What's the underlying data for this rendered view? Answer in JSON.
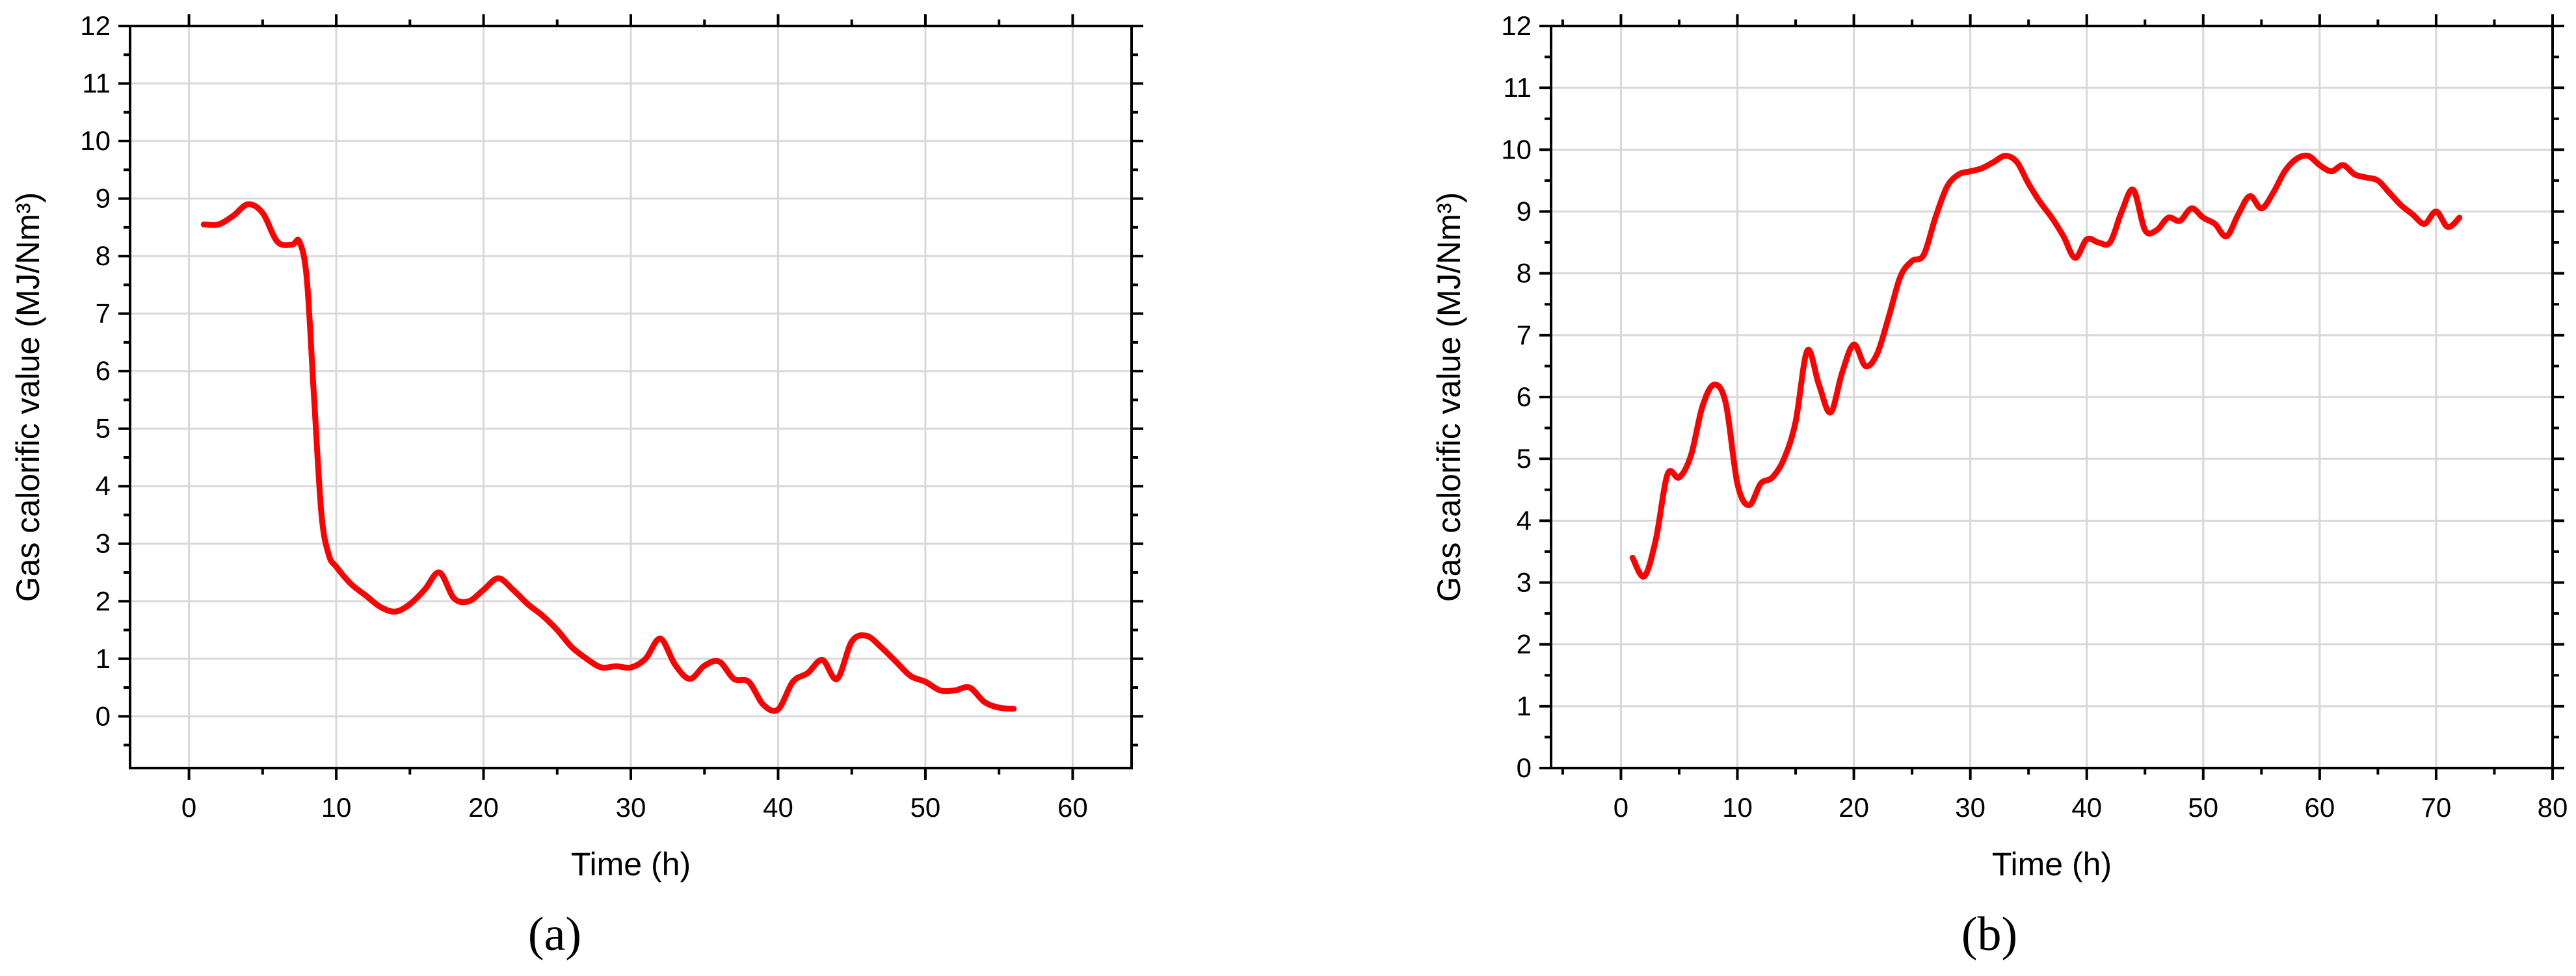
{
  "colors": {
    "line": "#ff0000",
    "grid": "#d8d8d8",
    "axis": "#000000",
    "background": "#ffffff"
  },
  "chart_data": [
    {
      "type": "line",
      "panel_label": "(a)",
      "xlabel": "Time (h)",
      "ylabel": "Gas calorific value (MJ/Nm³)",
      "xlim": [
        -4,
        64
      ],
      "ylim": [
        -0.9,
        12
      ],
      "xticks": [
        0,
        10,
        20,
        30,
        40,
        50,
        60
      ],
      "yticks": [
        0,
        1,
        2,
        3,
        4,
        5,
        6,
        7,
        8,
        9,
        10,
        11,
        12
      ],
      "grid": true,
      "series": [
        {
          "color": "#ff0000",
          "x": [
            1,
            2,
            3,
            4,
            5,
            6,
            7,
            7.5,
            8,
            8.5,
            9,
            9.5,
            10,
            11,
            12,
            13,
            14,
            15,
            16,
            17,
            18,
            19,
            20,
            21,
            22,
            23,
            24,
            25,
            26,
            27,
            28,
            29,
            30,
            31,
            32,
            33,
            34,
            35,
            36,
            37,
            38,
            39,
            40,
            41,
            42,
            43,
            44,
            45,
            46,
            47,
            48,
            49,
            50,
            51,
            52,
            53,
            54,
            55,
            56
          ],
          "values": [
            8.55,
            8.55,
            8.7,
            8.9,
            8.75,
            8.25,
            8.2,
            8.25,
            7.6,
            5.5,
            3.5,
            2.8,
            2.6,
            2.3,
            2.1,
            1.9,
            1.82,
            1.95,
            2.2,
            2.5,
            2.05,
            2.0,
            2.2,
            2.4,
            2.2,
            1.95,
            1.75,
            1.5,
            1.2,
            1.0,
            0.85,
            0.87,
            0.85,
            1.0,
            1.35,
            0.9,
            0.65,
            0.88,
            0.95,
            0.65,
            0.6,
            0.2,
            0.12,
            0.6,
            0.75,
            0.98,
            0.65,
            1.3,
            1.4,
            1.2,
            0.95,
            0.7,
            0.6,
            0.45,
            0.45,
            0.5,
            0.25,
            0.15,
            0.13
          ]
        }
      ]
    },
    {
      "type": "line",
      "panel_label": "(b)",
      "xlabel": "Time (h)",
      "ylabel": "Gas calorific value (MJ/Nm³)",
      "xlim": [
        -6,
        80
      ],
      "ylim": [
        0,
        12
      ],
      "xticks": [
        0,
        10,
        20,
        30,
        40,
        50,
        60,
        70,
        80
      ],
      "yticks": [
        0,
        1,
        2,
        3,
        4,
        5,
        6,
        7,
        8,
        9,
        10,
        11,
        12
      ],
      "grid": true,
      "series": [
        {
          "color": "#ff0000",
          "x": [
            1,
            2,
            3,
            4,
            5,
            6,
            7,
            8,
            9,
            10,
            11,
            12,
            13,
            14,
            15,
            16,
            17,
            18,
            19,
            20,
            21,
            22,
            23,
            24,
            25,
            26,
            27,
            28,
            29,
            30,
            31,
            32,
            33,
            34,
            35,
            36,
            37,
            38,
            39,
            40,
            41,
            42,
            43,
            44,
            45,
            46,
            47,
            48,
            49,
            50,
            51,
            52,
            53,
            54,
            55,
            56,
            57,
            58,
            59,
            60,
            61,
            62,
            63,
            64,
            65,
            66,
            67,
            68,
            69,
            70,
            71,
            72
          ],
          "values": [
            3.4,
            3.1,
            3.7,
            4.75,
            4.7,
            5.05,
            5.85,
            6.2,
            5.9,
            4.6,
            4.25,
            4.6,
            4.7,
            5.0,
            5.6,
            6.75,
            6.2,
            5.75,
            6.4,
            6.85,
            6.5,
            6.7,
            7.3,
            7.95,
            8.2,
            8.3,
            8.9,
            9.4,
            9.6,
            9.65,
            9.7,
            9.8,
            9.9,
            9.8,
            9.45,
            9.15,
            8.9,
            8.6,
            8.25,
            8.55,
            8.5,
            8.5,
            9.0,
            9.35,
            8.7,
            8.7,
            8.9,
            8.85,
            9.05,
            8.9,
            8.8,
            8.6,
            8.95,
            9.25,
            9.05,
            9.3,
            9.65,
            9.85,
            9.9,
            9.75,
            9.65,
            9.75,
            9.6,
            9.55,
            9.5,
            9.3,
            9.1,
            8.95,
            8.8,
            9.0,
            8.75,
            8.9
          ]
        }
      ]
    }
  ]
}
